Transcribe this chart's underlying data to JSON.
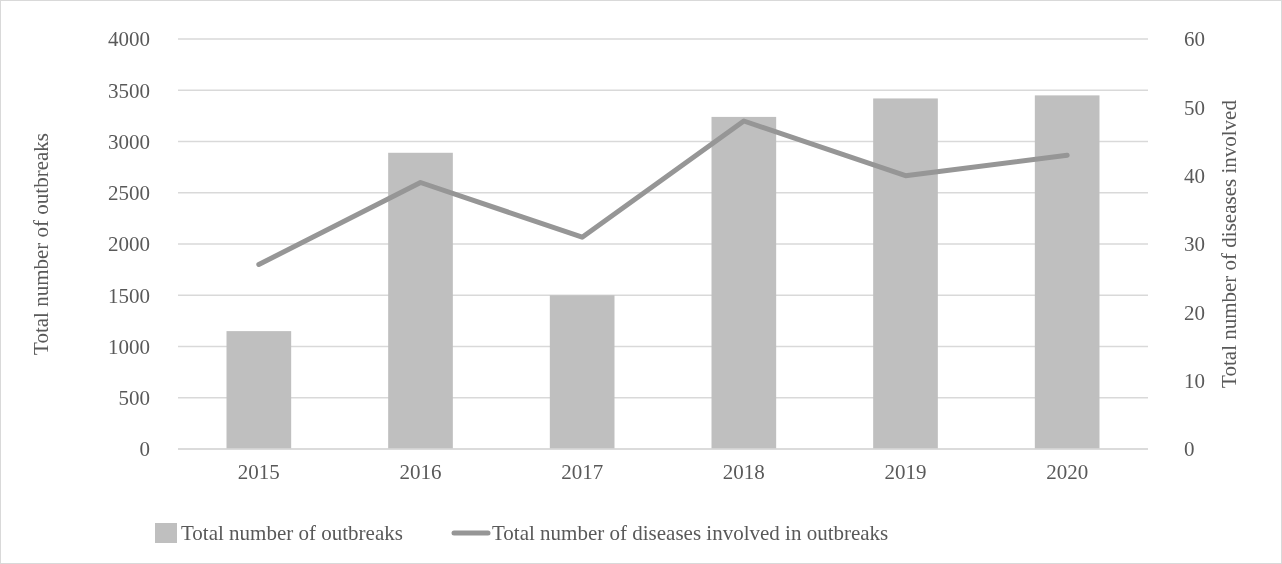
{
  "chart_data": {
    "type": "bar",
    "categories": [
      "2015",
      "2016",
      "2017",
      "2018",
      "2019",
      "2020"
    ],
    "series": [
      {
        "name": "Total number of outbreaks",
        "color": "#bfbfbf",
        "values": [
          1150,
          2890,
          1500,
          3240,
          3420,
          3450
        ]
      },
      {
        "name": "Total number of diseases involved in outbreaks",
        "type": "line",
        "axis": "y2",
        "color": "#969696",
        "values": [
          27,
          39,
          31,
          48,
          40,
          43
        ]
      }
    ],
    "ylabel": "Total number of outbreaks",
    "y2label": "Total number of diseases involved",
    "ylim": [
      0,
      4000
    ],
    "yticks": [
      0,
      500,
      1000,
      1500,
      2000,
      2500,
      3000,
      3500,
      4000
    ],
    "y2lim": [
      0,
      60
    ],
    "y2ticks": [
      0,
      10,
      20,
      30,
      40,
      50,
      60
    ],
    "grid": "y",
    "legend": "bottom",
    "marker": "none"
  }
}
